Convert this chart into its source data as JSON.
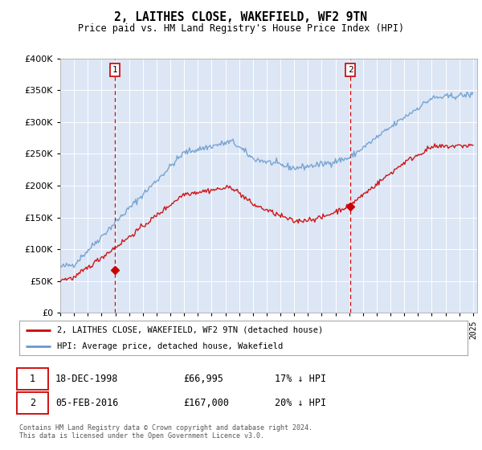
{
  "title": "2, LAITHES CLOSE, WAKEFIELD, WF2 9TN",
  "subtitle": "Price paid vs. HM Land Registry's House Price Index (HPI)",
  "background_color": "#dce6f5",
  "plot_bg_color": "#dce6f5",
  "ylim": [
    0,
    400000
  ],
  "yticks": [
    0,
    50000,
    100000,
    150000,
    200000,
    250000,
    300000,
    350000,
    400000
  ],
  "legend_label_red": "2, LAITHES CLOSE, WAKEFIELD, WF2 9TN (detached house)",
  "legend_label_blue": "HPI: Average price, detached house, Wakefield",
  "annotation1_date": "18-DEC-1998",
  "annotation1_price": "£66,995",
  "annotation1_hpi": "17% ↓ HPI",
  "annotation2_date": "05-FEB-2016",
  "annotation2_price": "£167,000",
  "annotation2_hpi": "20% ↓ HPI",
  "footer": "Contains HM Land Registry data © Crown copyright and database right 2024.\nThis data is licensed under the Open Government Licence v3.0.",
  "hpi_color": "#6699cc",
  "price_color": "#cc0000",
  "vline_color": "#cc0000",
  "sale1_price": 66995,
  "sale1_year": 1998.96,
  "sale2_price": 167000,
  "sale2_year": 2016.09
}
